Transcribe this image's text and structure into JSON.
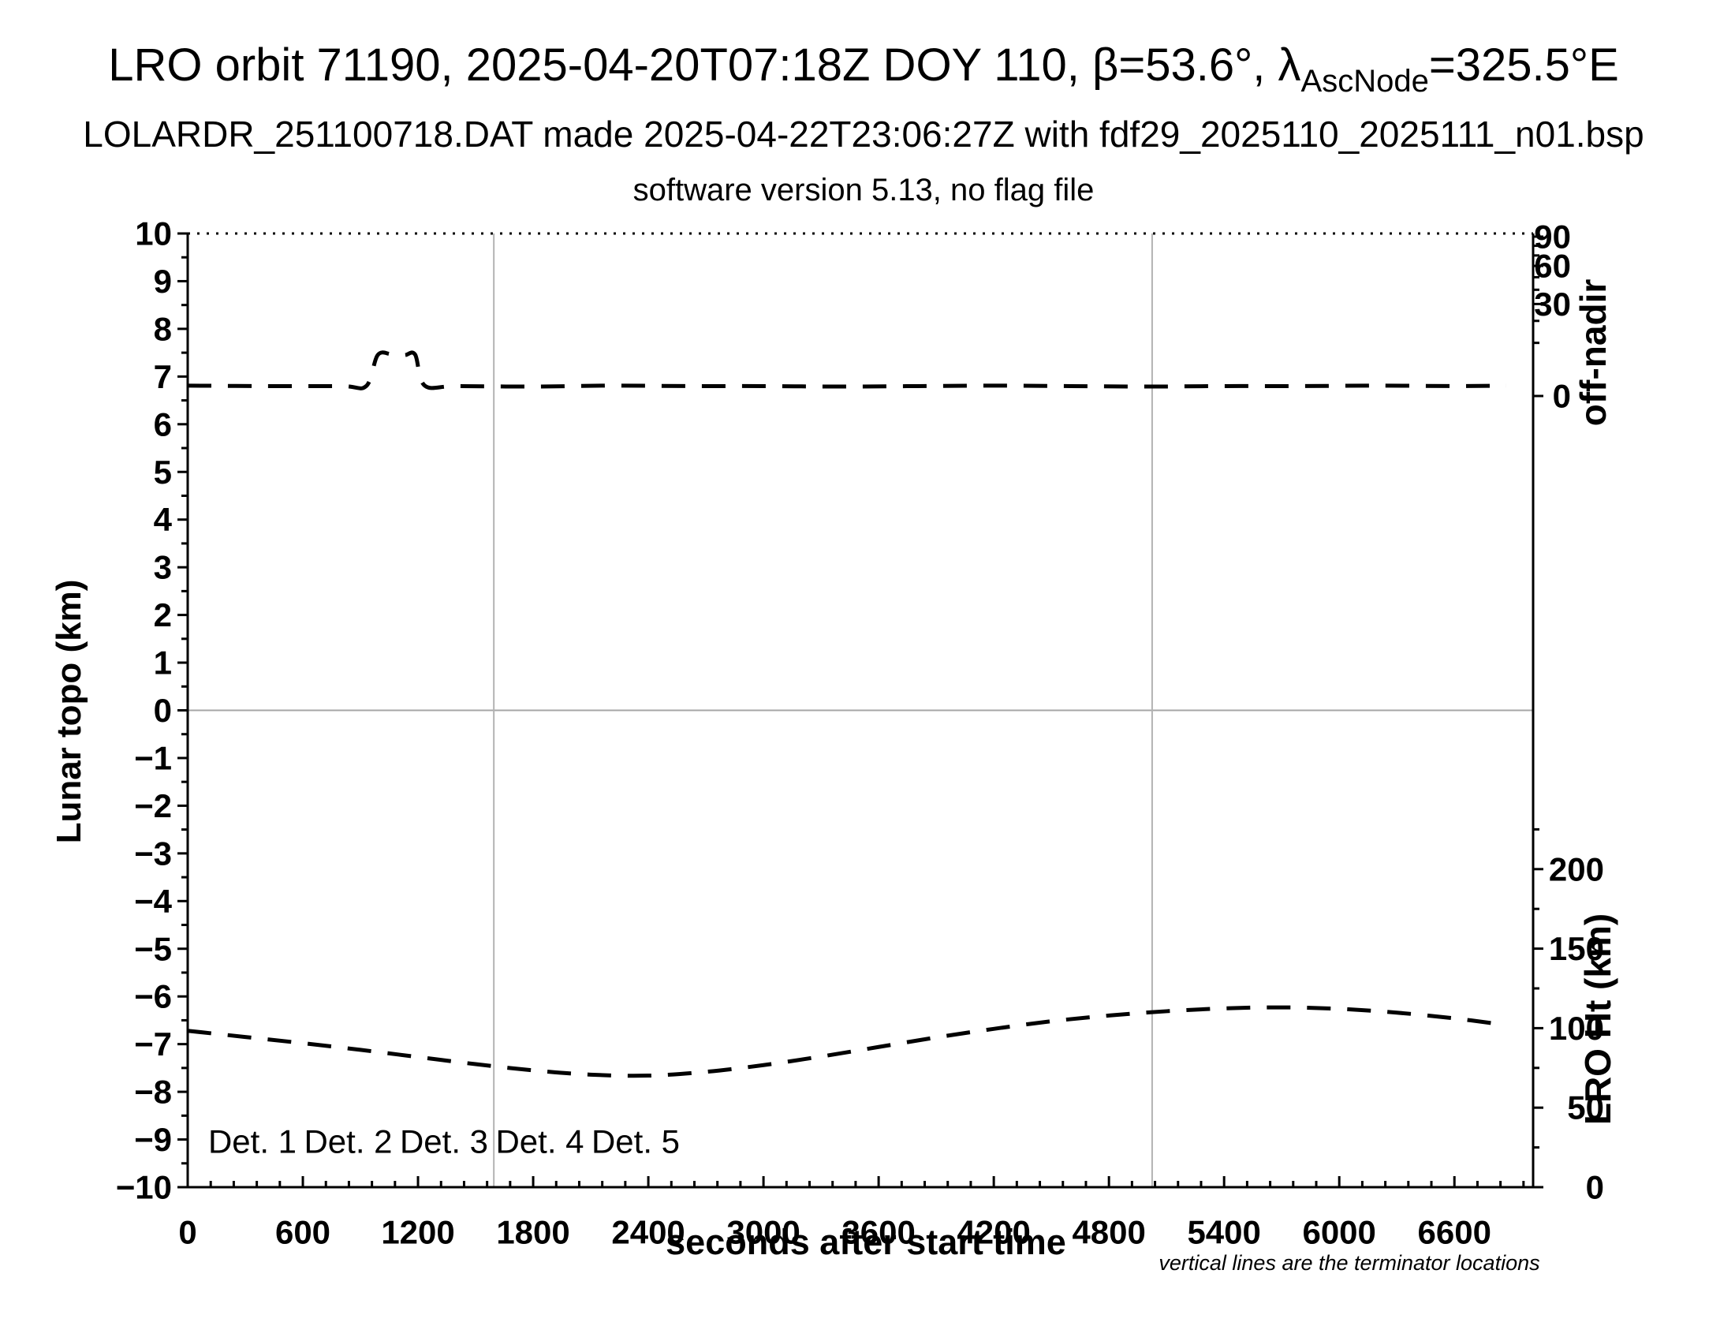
{
  "header": {
    "title_main": "LRO orbit 71190, 2025-04-20T07:18Z DOY 110, β=53.6°, λ",
    "title_subscript": "AscNode",
    "title_end": "=325.5°E",
    "subtitle": "LOLARDR_251100718.DAT made 2025-04-22T23:06:27Z with fdf29_2025110_2025111_n01.bsp",
    "version_line": "software version 5.13, no flag file"
  },
  "footnote": "vertical lines are the terminator locations",
  "chart_data": {
    "type": "line",
    "title": "LRO orbit 71190, 2025-04-20T07:18Z DOY 110, β=53.6°, λAscNode=325.5°E",
    "x_axis": {
      "label": "seconds after start time",
      "min": 0,
      "max": 7010,
      "major_tick_step": 600,
      "minor_tick_step": 120,
      "major_ticks": [
        0,
        600,
        1200,
        1800,
        2400,
        3000,
        3600,
        4200,
        4800,
        5400,
        6000,
        6600
      ]
    },
    "y_axis_left": {
      "label": "Lunar topo (km)",
      "min": -10,
      "max": 10,
      "major_tick_step": 1,
      "minor_tick_step": 0.5
    },
    "y_axis_right_top": {
      "label": "off-nadir",
      "scale": "sqrt-degrees",
      "labeled_ticks": [
        90,
        60,
        30,
        0
      ],
      "minor_ticks": [
        10,
        20,
        40,
        50,
        70,
        80
      ]
    },
    "y_axis_right_bottom": {
      "label": "LRO Ht (km)",
      "labeled_ticks": [
        0,
        50,
        100,
        150,
        200
      ],
      "minor_ticks": [
        25,
        75,
        125,
        175,
        225
      ]
    },
    "gridlines": {
      "horizontal_at_topo_km": 0,
      "vertical_terminators_s": [
        1595,
        5025
      ]
    },
    "legend": [
      {
        "label": "Det. 1",
        "color": "#000000"
      },
      {
        "label": "Det. 2",
        "color": "#0000ff"
      },
      {
        "label": "Det. 3",
        "color": "#00cc33"
      },
      {
        "label": "Det. 4",
        "color": "#ffa500"
      },
      {
        "label": "Det. 5",
        "color": "#ff0000"
      }
    ],
    "series": [
      {
        "name": "off-nadir angle (upper dashed curve, plotted on left topo-km scale)",
        "line_style": "dashed",
        "color": "#000000",
        "points": [
          [
            0,
            6.81
          ],
          [
            400,
            6.8
          ],
          [
            800,
            6.8
          ],
          [
            930,
            6.8
          ],
          [
            990,
            7.45
          ],
          [
            1060,
            7.47
          ],
          [
            1130,
            7.45
          ],
          [
            1185,
            7.46
          ],
          [
            1235,
            6.81
          ],
          [
            1400,
            6.8
          ],
          [
            1800,
            6.79
          ],
          [
            2200,
            6.81
          ],
          [
            2600,
            6.8
          ],
          [
            3000,
            6.8
          ],
          [
            3400,
            6.79
          ],
          [
            3800,
            6.8
          ],
          [
            4200,
            6.81
          ],
          [
            4600,
            6.8
          ],
          [
            5000,
            6.79
          ],
          [
            5400,
            6.8
          ],
          [
            5800,
            6.8
          ],
          [
            6200,
            6.81
          ],
          [
            6600,
            6.8
          ],
          [
            6870,
            6.81
          ]
        ]
      },
      {
        "name": "LRO height above surface (lower dashed curve, plotted on left topo-km scale)",
        "line_style": "dashed",
        "color": "#000000",
        "points": [
          [
            0,
            -6.72
          ],
          [
            300,
            -6.85
          ],
          [
            600,
            -6.98
          ],
          [
            900,
            -7.12
          ],
          [
            1200,
            -7.27
          ],
          [
            1500,
            -7.42
          ],
          [
            1800,
            -7.55
          ],
          [
            2100,
            -7.64
          ],
          [
            2400,
            -7.66
          ],
          [
            2700,
            -7.58
          ],
          [
            3000,
            -7.44
          ],
          [
            3300,
            -7.26
          ],
          [
            3600,
            -7.06
          ],
          [
            3900,
            -6.86
          ],
          [
            4200,
            -6.68
          ],
          [
            4500,
            -6.52
          ],
          [
            4800,
            -6.4
          ],
          [
            5100,
            -6.31
          ],
          [
            5400,
            -6.25
          ],
          [
            5700,
            -6.23
          ],
          [
            6000,
            -6.26
          ],
          [
            6300,
            -6.34
          ],
          [
            6600,
            -6.46
          ],
          [
            6870,
            -6.6
          ]
        ]
      }
    ]
  }
}
